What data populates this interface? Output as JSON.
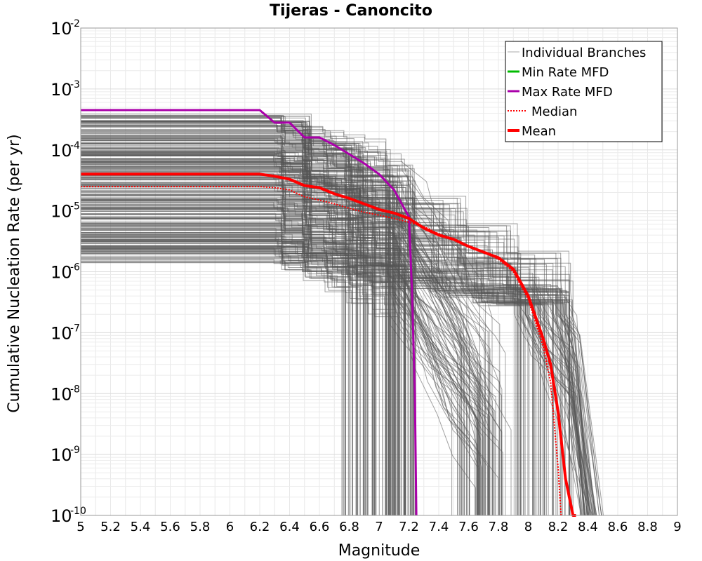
{
  "chart_data": {
    "type": "line",
    "title": "Tijeras - Canoncito",
    "xlabel": "Magnitude",
    "ylabel": "Cumulative Nucleation Rate (per yr)",
    "x_scale": "linear",
    "y_scale": "log",
    "xlim": [
      5,
      9
    ],
    "ylim": [
      1e-10,
      0.01
    ],
    "x_ticks": [
      "5",
      "5.2",
      "5.4",
      "5.6",
      "5.8",
      "6",
      "6.2",
      "6.4",
      "6.6",
      "6.8",
      "7",
      "7.2",
      "7.4",
      "7.6",
      "7.8",
      "8",
      "8.2",
      "8.4",
      "8.6",
      "8.8",
      "9"
    ],
    "y_ticks": [
      {
        "base": "10",
        "exp": "-2",
        "value": 0.01
      },
      {
        "base": "10",
        "exp": "-3",
        "value": 0.001
      },
      {
        "base": "10",
        "exp": "-4",
        "value": 0.0001
      },
      {
        "base": "10",
        "exp": "-5",
        "value": 1e-05
      },
      {
        "base": "10",
        "exp": "-6",
        "value": 1e-06
      },
      {
        "base": "10",
        "exp": "-7",
        "value": 1e-07
      },
      {
        "base": "10",
        "exp": "-8",
        "value": 1e-08
      },
      {
        "base": "10",
        "exp": "-9",
        "value": 1e-09
      },
      {
        "base": "10",
        "exp": "-10",
        "value": 1e-10
      }
    ],
    "grid": true,
    "legend_position": "top-right",
    "series": [
      {
        "name": "Max Rate MFD",
        "color": "#aa00aa",
        "style": "solid",
        "x": [
          5.0,
          6.2,
          6.3,
          6.4,
          6.5,
          6.6,
          6.7,
          6.8,
          6.9,
          7.0,
          7.1,
          7.2,
          7.22,
          7.24,
          7.25
        ],
        "y": [
          0.00045,
          0.00045,
          0.00028,
          0.00028,
          0.00016,
          0.00016,
          0.00012,
          8.5e-05,
          6e-05,
          4e-05,
          2.2e-05,
          8e-06,
          5e-07,
          1e-08,
          1e-10
        ]
      },
      {
        "name": "Mean",
        "color": "#ff0000",
        "style": "solid",
        "x": [
          5.0,
          6.2,
          6.3,
          6.4,
          6.5,
          6.6,
          6.7,
          6.8,
          6.9,
          7.0,
          7.1,
          7.2,
          7.3,
          7.4,
          7.5,
          7.6,
          7.7,
          7.8,
          7.9,
          8.0,
          8.1,
          8.15,
          8.2,
          8.25,
          8.3,
          8.31,
          8.32
        ],
        "y": [
          4e-05,
          4e-05,
          3.7e-05,
          3.3e-05,
          2.6e-05,
          2.4e-05,
          1.9e-05,
          1.6e-05,
          1.3e-05,
          1.05e-05,
          9.2e-06,
          7.5e-06,
          5.2e-06,
          4e-06,
          3.4e-06,
          2.6e-06,
          2.1e-06,
          1.7e-06,
          1.1e-06,
          4e-07,
          8e-08,
          3e-08,
          5e-09,
          4e-10,
          3e-11,
          1e-10,
          1e-10
        ]
      },
      {
        "name": "Median",
        "color": "#ff0000",
        "style": "dotted",
        "x": [
          5.0,
          6.2,
          6.3,
          6.4,
          6.5,
          6.6,
          6.7,
          6.8,
          6.9,
          7.0,
          7.1,
          7.2,
          7.3,
          7.4,
          7.5,
          7.6,
          7.7,
          7.8,
          7.9,
          8.0,
          8.1,
          8.15,
          8.2,
          8.22
        ],
        "y": [
          2.5e-05,
          2.5e-05,
          2.4e-05,
          2.2e-05,
          1.7e-05,
          1.5e-05,
          1.3e-05,
          1.1e-05,
          9.5e-06,
          8.5e-06,
          7.5e-06,
          6.5e-06,
          5.5e-06,
          4.2e-06,
          3.4e-06,
          2.6e-06,
          2.1e-06,
          1.6e-06,
          1e-06,
          3.5e-07,
          6e-08,
          1.5e-08,
          6e-10,
          1e-10
        ]
      },
      {
        "name": "Min Rate MFD",
        "color": "#00bb00",
        "style": "solid",
        "x": [],
        "y": []
      },
      {
        "name": "Individual Branches",
        "color": "#555555",
        "style": "solid",
        "x": [],
        "y": []
      }
    ]
  }
}
